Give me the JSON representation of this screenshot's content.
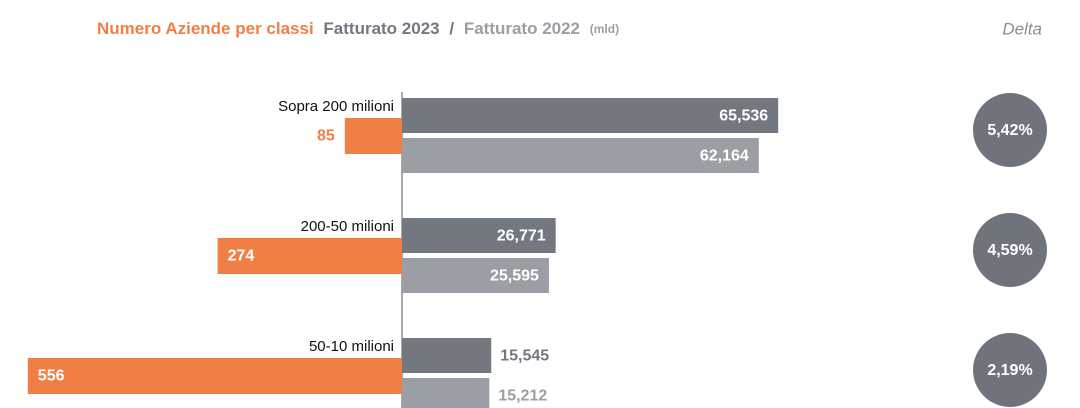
{
  "chart_data": {
    "type": "butterfly",
    "title": "Numero Aziende per classi",
    "separator": "/",
    "unit": "(mld)",
    "delta_title": "Delta",
    "categories": [
      "Sopra 200 milioni",
      "200-50 milioni",
      "50-10 milioni"
    ],
    "counts": {
      "color": "#f07f45",
      "values": [
        85,
        274,
        556
      ]
    },
    "series": [
      {
        "name": "Fatturato 2023",
        "color": "#737880",
        "values": [
          65.536,
          26.771,
          15.545
        ],
        "value_labels": [
          "65,536",
          "26,771",
          "15,545"
        ]
      },
      {
        "name": "Fatturato 2022",
        "color": "#9b9ea5",
        "values": [
          62.164,
          25.595,
          15.212
        ],
        "value_labels": [
          "62,164",
          "25,595",
          "15,212"
        ]
      }
    ],
    "delta": {
      "color": "#6f747c",
      "values": [
        5.42,
        4.59,
        2.19
      ],
      "value_labels": [
        "5,42%",
        "4,59%",
        "2,19%"
      ]
    }
  }
}
